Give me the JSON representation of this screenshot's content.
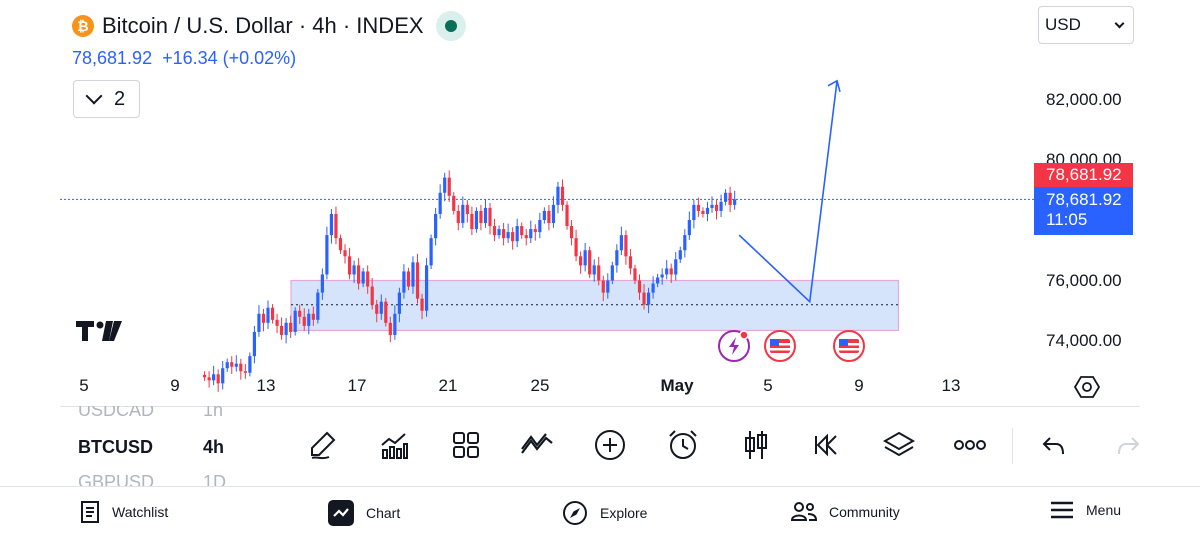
{
  "header": {
    "coin_symbol": "₿",
    "title": "Bitcoin / U.S. Dollar · 4h · INDEX",
    "price": "78,681.92",
    "change": "+16.34 (+0.02%)",
    "collapse_count": "2",
    "currency": "USD"
  },
  "price_scale": {
    "labels": [
      "82,000.00",
      "80,000.00",
      "76,000.00",
      "74,000.00"
    ],
    "last_price_red": "78,681.92",
    "last_price_blue": "78,681.92",
    "countdown": "11:05"
  },
  "time_axis": [
    "5",
    "9",
    "13",
    "17",
    "21",
    "25",
    "May",
    "5",
    "9",
    "13"
  ],
  "symbols": [
    {
      "symbol": "USDCAD",
      "interval": "1h"
    },
    {
      "symbol": "BTCUSD",
      "interval": "4h"
    },
    {
      "symbol": "GBPUSD",
      "interval": "1D"
    }
  ],
  "toolbar": [
    "pencil-icon",
    "indicators-icon",
    "layouts-icon",
    "drawing-tools-icon",
    "add-icon",
    "alarm-icon",
    "candles-icon",
    "replay-icon",
    "layers-icon",
    "more-icon",
    "undo-icon",
    "redo-icon"
  ],
  "nav": {
    "watchlist": "Watchlist",
    "chart": "Chart",
    "explore": "Explore",
    "community": "Community",
    "menu": "Menu"
  },
  "colors": {
    "up": "#2962ff",
    "down": "#f23645",
    "zone_fill": "#d6e4fb",
    "zone_border": "#e6a8d8"
  },
  "chart_data": {
    "type": "candlestick",
    "symbol": "BTCUSD",
    "interval": "4h",
    "ylim": [
      73200,
      83300
    ],
    "last_price": 78681.92,
    "zone": {
      "high": 76000,
      "low": 74350,
      "mid": 75200
    },
    "projection": [
      {
        "time": "May 3",
        "price": 77500
      },
      {
        "time": "May 6",
        "price": 75300
      },
      {
        "time": "May 7",
        "price": 82600
      }
    ],
    "closes": [
      72800,
      72700,
      72900,
      72600,
      73100,
      73300,
      73150,
      73250,
      73000,
      72950,
      73500,
      74300,
      74900,
      74600,
      75100,
      74700,
      74500,
      74200,
      74600,
      74300,
      75000,
      74800,
      74500,
      74900,
      74700,
      75600,
      76200,
      77500,
      78200,
      77400,
      77000,
      76800,
      76200,
      76500,
      75900,
      76300,
      75800,
      75200,
      74900,
      75300,
      74600,
      74200,
      74900,
      75600,
      76300,
      75800,
      76600,
      75400,
      75000,
      76500,
      77400,
      78200,
      78900,
      79400,
      78800,
      78300,
      77900,
      78500,
      78200,
      77700,
      78300,
      77900,
      78400,
      77800,
      77500,
      77700,
      77400,
      77600,
      77300,
      77800,
      77500,
      77400,
      77700,
      77600,
      78000,
      78300,
      77900,
      78500,
      79100,
      78500,
      77800,
      77400,
      76800,
      76500,
      77000,
      76200,
      76500,
      76000,
      75600,
      76000,
      76500,
      77000,
      77500,
      76800,
      76400,
      76000,
      75600,
      75200,
      75600,
      75900,
      76100,
      76200,
      76400,
      76200,
      76700,
      77000,
      77500,
      78000,
      78500,
      78300,
      78200,
      78400,
      78500,
      78300,
      78600,
      78900,
      78500,
      78682
    ]
  }
}
